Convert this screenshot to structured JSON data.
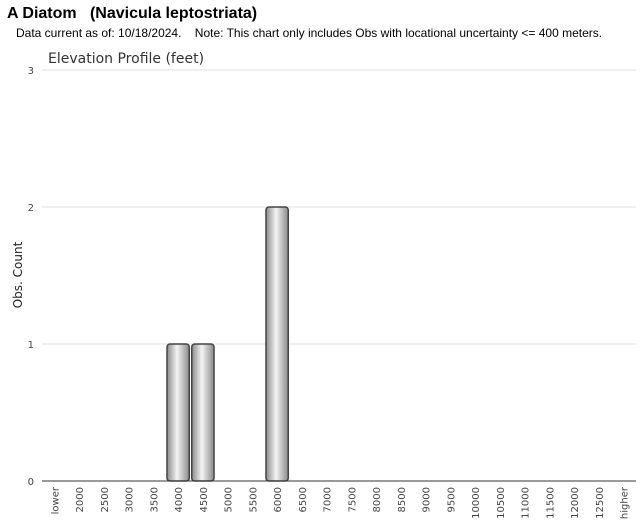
{
  "header": {
    "title": "A Diatom   (Navicula leptostriata)",
    "note": "Data current as of: 10/18/2024.    Note: This chart only includes Obs with locational uncertainty <= 400 meters."
  },
  "colors": {
    "bar_fill_light": "#f4f4f4",
    "bar_fill_dark": "#8a8a8a",
    "bar_stroke": "#444444",
    "gridline": "#e0e0e0",
    "axis": "#333333"
  },
  "chart_data": {
    "type": "bar",
    "title": "Elevation Profile (feet)",
    "xlabel": "",
    "ylabel": "Obs. Count",
    "ylim": [
      0,
      3
    ],
    "yticks": [
      "0",
      "1",
      "2",
      "3"
    ],
    "grid": true,
    "categories": [
      "lower",
      "2000",
      "2500",
      "3000",
      "3500",
      "4000",
      "4500",
      "5000",
      "5500",
      "6000",
      "6500",
      "7000",
      "7500",
      "8000",
      "8500",
      "9000",
      "9500",
      "10000",
      "10500",
      "11000",
      "11500",
      "12000",
      "12500",
      "higher"
    ],
    "values": [
      0,
      0,
      0,
      0,
      0,
      1,
      1,
      0,
      0,
      2,
      0,
      0,
      0,
      0,
      0,
      0,
      0,
      0,
      0,
      0,
      0,
      0,
      0,
      0
    ]
  }
}
